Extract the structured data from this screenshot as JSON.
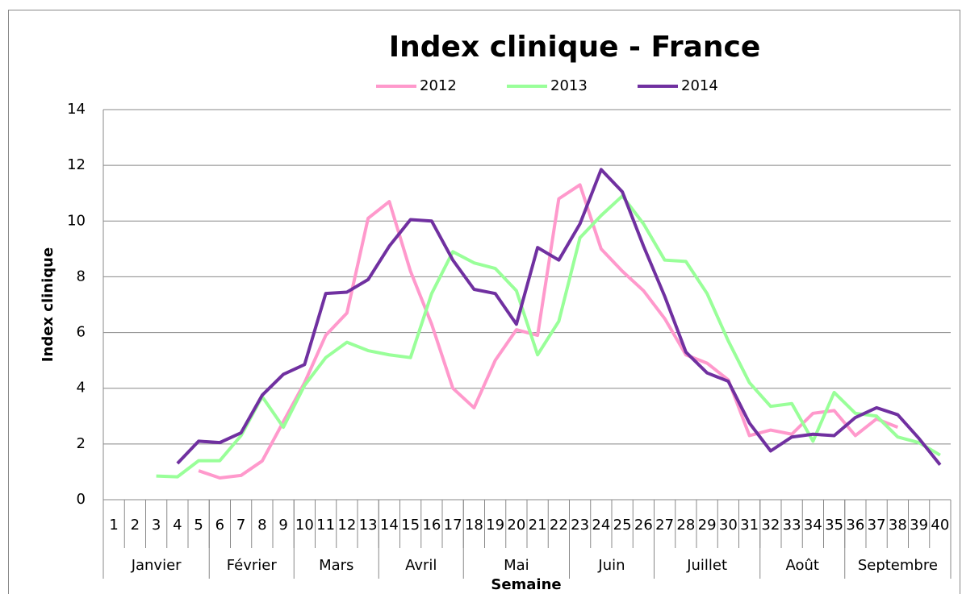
{
  "chart_data": {
    "type": "line",
    "title": "Index clinique - France",
    "y_label": "Index clinique",
    "x_label": "Semaine",
    "categories": [
      "1",
      "2",
      "3",
      "4",
      "5",
      "6",
      "7",
      "8",
      "9",
      "10",
      "11",
      "12",
      "13",
      "14",
      "15",
      "16",
      "17",
      "18",
      "19",
      "20",
      "21",
      "22",
      "23",
      "24",
      "25",
      "26",
      "27",
      "28",
      "29",
      "30",
      "31",
      "32",
      "33",
      "34",
      "35",
      "36",
      "37",
      "38",
      "39",
      "40"
    ],
    "month_groups": [
      {
        "label": "Janvier",
        "span": 5
      },
      {
        "label": "Février",
        "span": 4
      },
      {
        "label": "Mars",
        "span": 4
      },
      {
        "label": "Avril",
        "span": 4
      },
      {
        "label": "Mai",
        "span": 5
      },
      {
        "label": "Juin",
        "span": 4
      },
      {
        "label": "Juillet",
        "span": 5
      },
      {
        "label": "Août",
        "span": 4
      },
      {
        "label": "Septembre",
        "span": 5
      }
    ],
    "series": [
      {
        "name": "2012",
        "color": "#ff99cc",
        "values": [
          null,
          null,
          null,
          null,
          1.04,
          0.78,
          0.87,
          1.39,
          2.8,
          4.2,
          5.9,
          6.7,
          10.1,
          10.7,
          8.2,
          6.3,
          4.0,
          3.3,
          5.0,
          6.1,
          5.9,
          10.8,
          11.3,
          9.0,
          8.2,
          7.5,
          6.5,
          5.2,
          4.9,
          4.3,
          2.3,
          2.5,
          2.35,
          3.1,
          3.2,
          2.3,
          2.9,
          2.6,
          null,
          null
        ]
      },
      {
        "name": "2013",
        "color": "#99ff99",
        "values": [
          null,
          null,
          0.85,
          0.82,
          1.4,
          1.4,
          2.3,
          3.7,
          2.6,
          4.1,
          5.1,
          5.65,
          5.35,
          5.2,
          5.1,
          7.4,
          8.9,
          8.5,
          8.3,
          7.5,
          5.2,
          6.4,
          9.4,
          10.2,
          10.9,
          9.9,
          8.6,
          8.55,
          7.4,
          5.7,
          4.2,
          3.35,
          3.45,
          2.1,
          3.85,
          3.1,
          3.0,
          2.25,
          2.05,
          1.6
        ]
      },
      {
        "name": "2014",
        "color": "#7030a0",
        "values": [
          null,
          null,
          null,
          1.3,
          2.1,
          2.05,
          2.4,
          3.75,
          4.5,
          4.85,
          7.4,
          7.45,
          7.9,
          9.1,
          10.05,
          10.0,
          8.6,
          7.55,
          7.4,
          6.3,
          9.05,
          8.6,
          9.9,
          11.85,
          11.05,
          9.1,
          7.3,
          5.3,
          4.55,
          4.25,
          2.75,
          1.75,
          2.25,
          2.35,
          2.3,
          2.95,
          3.3,
          3.05,
          2.2,
          1.25
        ]
      }
    ],
    "ylim": [
      0,
      14
    ],
    "yticks": [
      0,
      2,
      4,
      6,
      8,
      10,
      12,
      14
    ],
    "grid": true,
    "legend": "top"
  }
}
